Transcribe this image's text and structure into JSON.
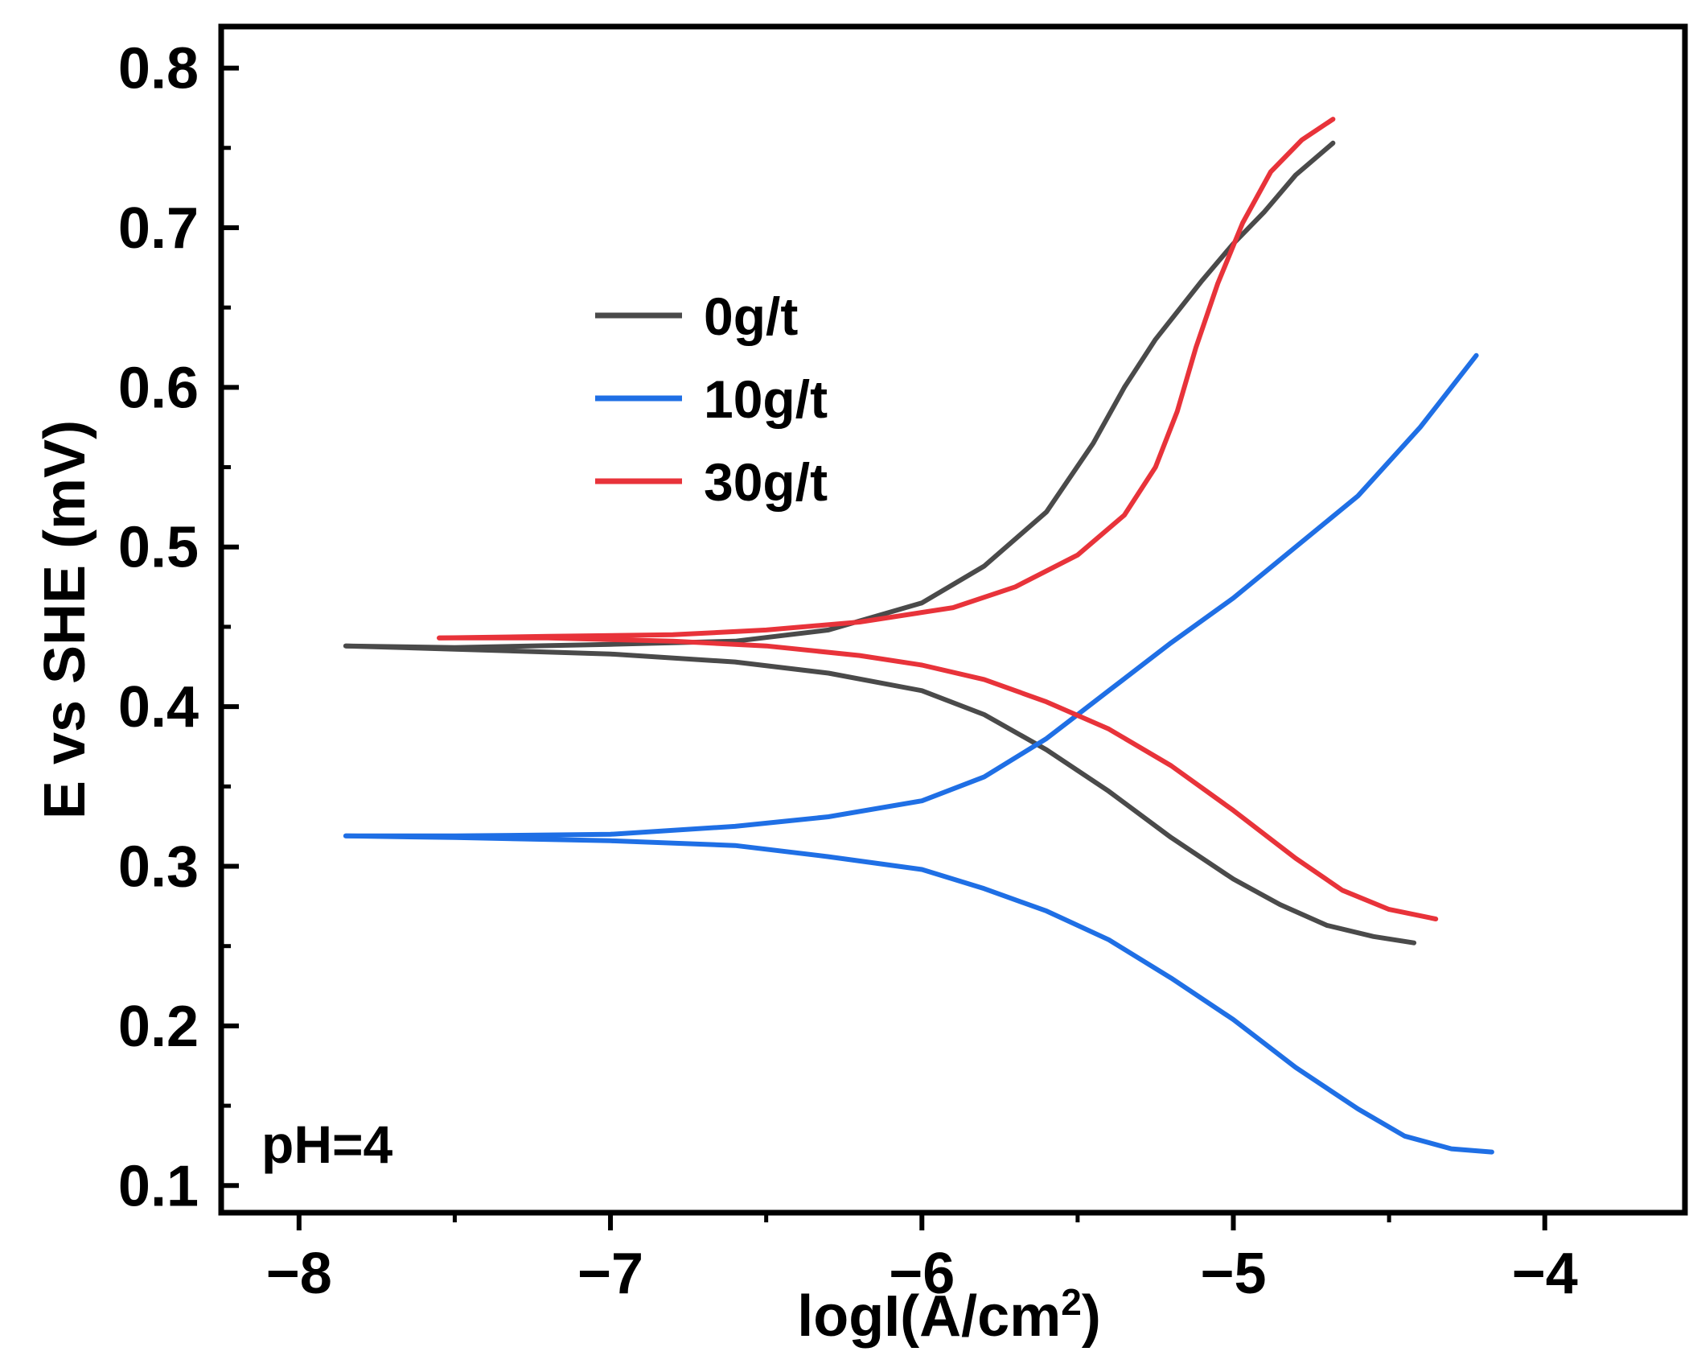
{
  "chart_data": {
    "type": "line",
    "xlabel": "logI(A/cm",
    "xlabel_sup": "2",
    "xlabel_end": ")",
    "ylabel": "E vs SHE (mV)",
    "xlim": [
      -8.25,
      -3.55
    ],
    "ylim": [
      0.083,
      0.826
    ],
    "x_ticks": [
      -8,
      -7,
      -6,
      -5,
      -4
    ],
    "x_tick_labels": [
      "−8",
      "−7",
      "−6",
      "−5",
      "−4"
    ],
    "y_ticks": [
      0.1,
      0.2,
      0.3,
      0.4,
      0.5,
      0.6,
      0.7,
      0.8
    ],
    "y_tick_labels": [
      "0.1",
      "0.2",
      "0.3",
      "0.4",
      "0.5",
      "0.6",
      "0.7",
      "0.8"
    ],
    "grid": false,
    "legend_position": "upper-left",
    "annotation": "pH=4",
    "series": [
      {
        "name": "0g/t",
        "color": "#4a4a4a",
        "anodic": [
          [
            -7.85,
            0.438
          ],
          [
            -7.5,
            0.437
          ],
          [
            -7.0,
            0.439
          ],
          [
            -6.6,
            0.441
          ],
          [
            -6.3,
            0.448
          ],
          [
            -6.0,
            0.465
          ],
          [
            -5.8,
            0.488
          ],
          [
            -5.6,
            0.522
          ],
          [
            -5.45,
            0.565
          ],
          [
            -5.35,
            0.6
          ],
          [
            -5.25,
            0.63
          ],
          [
            -5.1,
            0.667
          ],
          [
            -5.0,
            0.69
          ],
          [
            -4.9,
            0.71
          ],
          [
            -4.8,
            0.733
          ],
          [
            -4.68,
            0.753
          ]
        ],
        "cathodic": [
          [
            -7.85,
            0.438
          ],
          [
            -7.5,
            0.436
          ],
          [
            -7.0,
            0.433
          ],
          [
            -6.6,
            0.428
          ],
          [
            -6.3,
            0.421
          ],
          [
            -6.0,
            0.41
          ],
          [
            -5.8,
            0.395
          ],
          [
            -5.6,
            0.373
          ],
          [
            -5.4,
            0.347
          ],
          [
            -5.2,
            0.318
          ],
          [
            -5.0,
            0.292
          ],
          [
            -4.85,
            0.276
          ],
          [
            -4.7,
            0.263
          ],
          [
            -4.55,
            0.256
          ],
          [
            -4.42,
            0.252
          ]
        ]
      },
      {
        "name": "10g/t",
        "color": "#1f6fe5",
        "anodic": [
          [
            -7.85,
            0.319
          ],
          [
            -7.5,
            0.319
          ],
          [
            -7.0,
            0.32
          ],
          [
            -6.6,
            0.325
          ],
          [
            -6.3,
            0.331
          ],
          [
            -6.0,
            0.341
          ],
          [
            -5.8,
            0.356
          ],
          [
            -5.6,
            0.38
          ],
          [
            -5.4,
            0.41
          ],
          [
            -5.2,
            0.44
          ],
          [
            -5.0,
            0.468
          ],
          [
            -4.8,
            0.5
          ],
          [
            -4.6,
            0.532
          ],
          [
            -4.4,
            0.575
          ],
          [
            -4.22,
            0.62
          ]
        ],
        "cathodic": [
          [
            -7.85,
            0.319
          ],
          [
            -7.5,
            0.318
          ],
          [
            -7.0,
            0.316
          ],
          [
            -6.6,
            0.313
          ],
          [
            -6.3,
            0.306
          ],
          [
            -6.0,
            0.298
          ],
          [
            -5.8,
            0.286
          ],
          [
            -5.6,
            0.272
          ],
          [
            -5.4,
            0.254
          ],
          [
            -5.2,
            0.23
          ],
          [
            -5.0,
            0.204
          ],
          [
            -4.8,
            0.174
          ],
          [
            -4.6,
            0.148
          ],
          [
            -4.45,
            0.131
          ],
          [
            -4.3,
            0.123
          ],
          [
            -4.17,
            0.121
          ]
        ]
      },
      {
        "name": "30g/t",
        "color": "#e8333a",
        "anodic": [
          [
            -7.55,
            0.443
          ],
          [
            -7.2,
            0.444
          ],
          [
            -6.8,
            0.445
          ],
          [
            -6.5,
            0.448
          ],
          [
            -6.2,
            0.453
          ],
          [
            -5.9,
            0.462
          ],
          [
            -5.7,
            0.475
          ],
          [
            -5.5,
            0.495
          ],
          [
            -5.35,
            0.52
          ],
          [
            -5.25,
            0.55
          ],
          [
            -5.18,
            0.585
          ],
          [
            -5.12,
            0.625
          ],
          [
            -5.05,
            0.665
          ],
          [
            -4.97,
            0.703
          ],
          [
            -4.88,
            0.735
          ],
          [
            -4.78,
            0.755
          ],
          [
            -4.68,
            0.768
          ]
        ],
        "cathodic": [
          [
            -7.55,
            0.443
          ],
          [
            -7.2,
            0.443
          ],
          [
            -6.8,
            0.441
          ],
          [
            -6.5,
            0.438
          ],
          [
            -6.2,
            0.432
          ],
          [
            -6.0,
            0.426
          ],
          [
            -5.8,
            0.417
          ],
          [
            -5.6,
            0.403
          ],
          [
            -5.4,
            0.386
          ],
          [
            -5.2,
            0.363
          ],
          [
            -5.0,
            0.335
          ],
          [
            -4.8,
            0.305
          ],
          [
            -4.65,
            0.285
          ],
          [
            -4.5,
            0.273
          ],
          [
            -4.35,
            0.267
          ]
        ]
      }
    ]
  }
}
